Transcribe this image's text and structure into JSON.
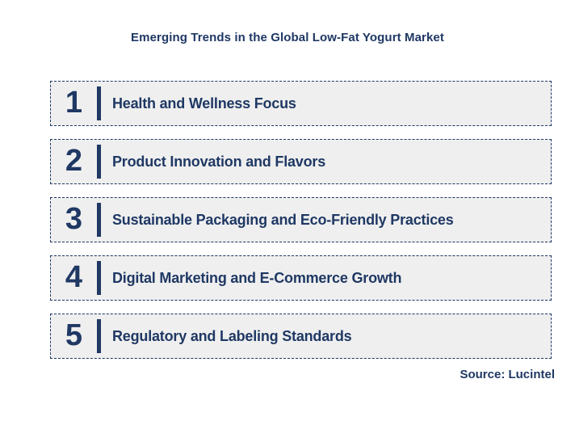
{
  "title": "Emerging Trends in the Global Low-Fat Yogurt Market",
  "source": "Source: Lucintel",
  "colors": {
    "navy": "#1F3864",
    "row_background": "#EFEFEF",
    "page_background": "#FFFFFF"
  },
  "trends": [
    {
      "number": "1",
      "label": "Health and Wellness Focus"
    },
    {
      "number": "2",
      "label": "Product Innovation and Flavors"
    },
    {
      "number": "3",
      "label": "Sustainable Packaging and Eco-Friendly Practices"
    },
    {
      "number": "4",
      "label": "Digital Marketing and E-Commerce Growth"
    },
    {
      "number": "5",
      "label": "Regulatory and Labeling Standards"
    }
  ]
}
